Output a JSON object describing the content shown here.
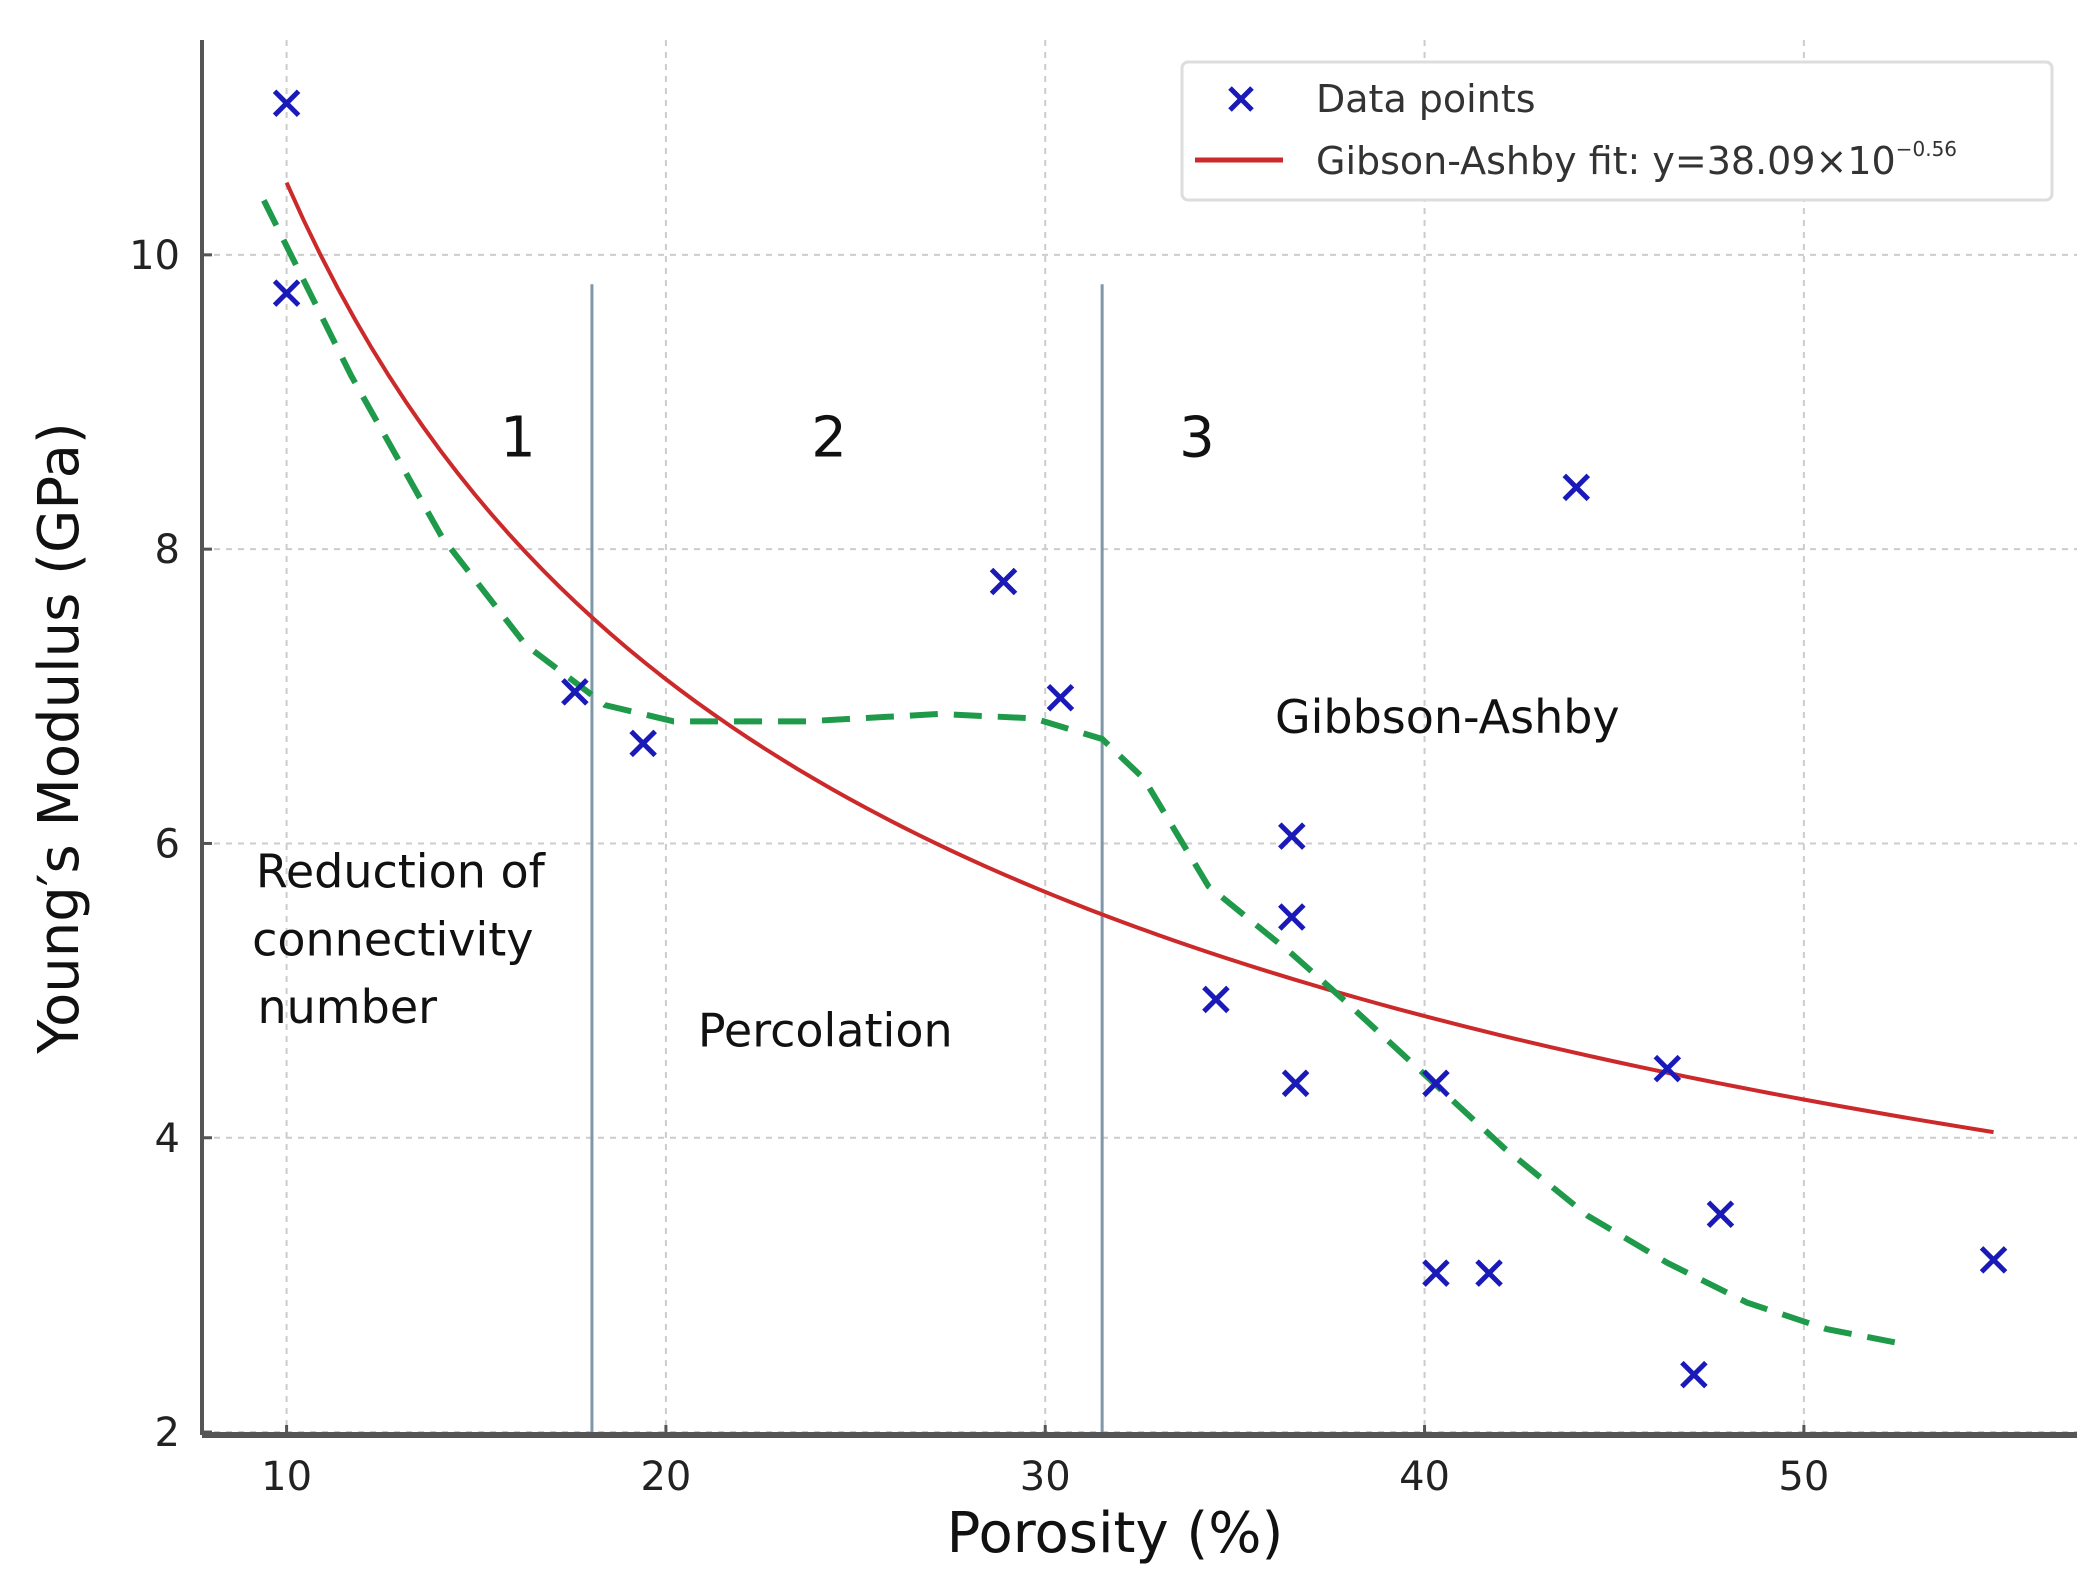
{
  "chart_data": {
    "type": "scatter",
    "title": "",
    "xlabel": "Porosity (%)",
    "ylabel": "Young′s Modulus (GPa)",
    "xlim": [
      7.77,
      57.2
    ],
    "ylim": [
      1.98,
      11.46
    ],
    "xticks": [
      10,
      20,
      30,
      40,
      50
    ],
    "yticks": [
      2,
      4,
      6,
      8,
      10
    ],
    "grid": true,
    "legend": {
      "placement": "top-right",
      "entries": [
        "Data points",
        "Gibson-Ashby fit: y=38.09×10",
        "−0.56"
      ]
    },
    "series": [
      {
        "name": "Data points",
        "kind": "scatter",
        "marker": "x",
        "color": "#1a1ab8",
        "x": [
          10,
          10,
          17.6,
          19.4,
          28.9,
          30.4,
          34.5,
          36.5,
          36.5,
          36.6,
          40.3,
          40.3,
          41.7,
          44.0,
          46.4,
          47.8,
          47.1,
          55.0
        ],
        "y": [
          11.03,
          9.74,
          7.03,
          6.68,
          7.78,
          6.99,
          4.94,
          6.05,
          5.5,
          4.37,
          4.37,
          3.08,
          3.08,
          8.42,
          4.47,
          3.48,
          2.39,
          3.17
        ]
      },
      {
        "name": "Gibson-Ashby fit",
        "kind": "power-fit",
        "color": "#cc2a2a",
        "a": 38.09,
        "b": -0.56,
        "x_range": [
          10,
          55
        ]
      },
      {
        "name": "trend",
        "kind": "dashed-line",
        "color": "#1e9a4a",
        "x": [
          9.4,
          11.7,
          14.1,
          16.3,
          18.4,
          20.2,
          23.7,
          27.2,
          29.7,
          31.5,
          32.6,
          34.3,
          36.5,
          37.9,
          40.0,
          42.1,
          44.3,
          46.4,
          48.5,
          50.6,
          52.6
        ],
        "y": [
          10.37,
          9.18,
          8.08,
          7.35,
          6.94,
          6.83,
          6.83,
          6.88,
          6.85,
          6.71,
          6.44,
          5.71,
          5.25,
          4.93,
          4.43,
          3.93,
          3.47,
          3.15,
          2.88,
          2.7,
          2.6
        ]
      }
    ],
    "region_boundaries": {
      "x": [
        18.05,
        31.5
      ],
      "y_top": 9.8,
      "color": "#7f97a8"
    },
    "annotations": [
      {
        "text": "1",
        "x": 16.1,
        "y": 8.63,
        "style": "num"
      },
      {
        "text": "2",
        "x": 24.3,
        "y": 8.63,
        "style": "num"
      },
      {
        "text": "3",
        "x": 34.0,
        "y": 8.63,
        "style": "num"
      },
      {
        "text": "Gibbson-Ashby",
        "x": 40.6,
        "y": 6.75,
        "style": "ann"
      },
      {
        "text": "Percolation",
        "x": 24.2,
        "y": 4.62,
        "style": "ann"
      },
      {
        "text": "Reduction of",
        "x": 13.0,
        "y": 5.7,
        "style": "ann"
      },
      {
        "text": "connectivity",
        "x": 12.8,
        "y": 5.24,
        "style": "ann"
      },
      {
        "text": "number",
        "x": 11.6,
        "y": 4.78,
        "style": "ann"
      }
    ]
  }
}
